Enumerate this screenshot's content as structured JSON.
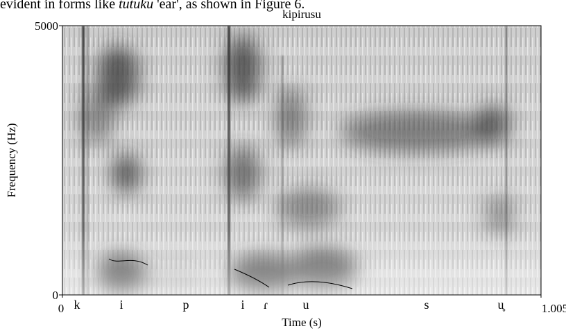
{
  "text_line": {
    "before": "evident in forms like",
    "word": "tutuku",
    "after": "'ear', as shown in Figure 6."
  },
  "figure": {
    "title": "kipirusu",
    "y_label": "Frequency (Hz)",
    "x_label": "Time (s)",
    "ylim": [
      0,
      5000
    ],
    "yticks": [
      0,
      5000
    ],
    "xlim": [
      0,
      1.005
    ],
    "xticks": [
      0,
      1.005
    ],
    "segments": [
      "k",
      "i",
      "p",
      "i",
      "ɾ",
      "u",
      "s",
      "u̥"
    ]
  }
}
